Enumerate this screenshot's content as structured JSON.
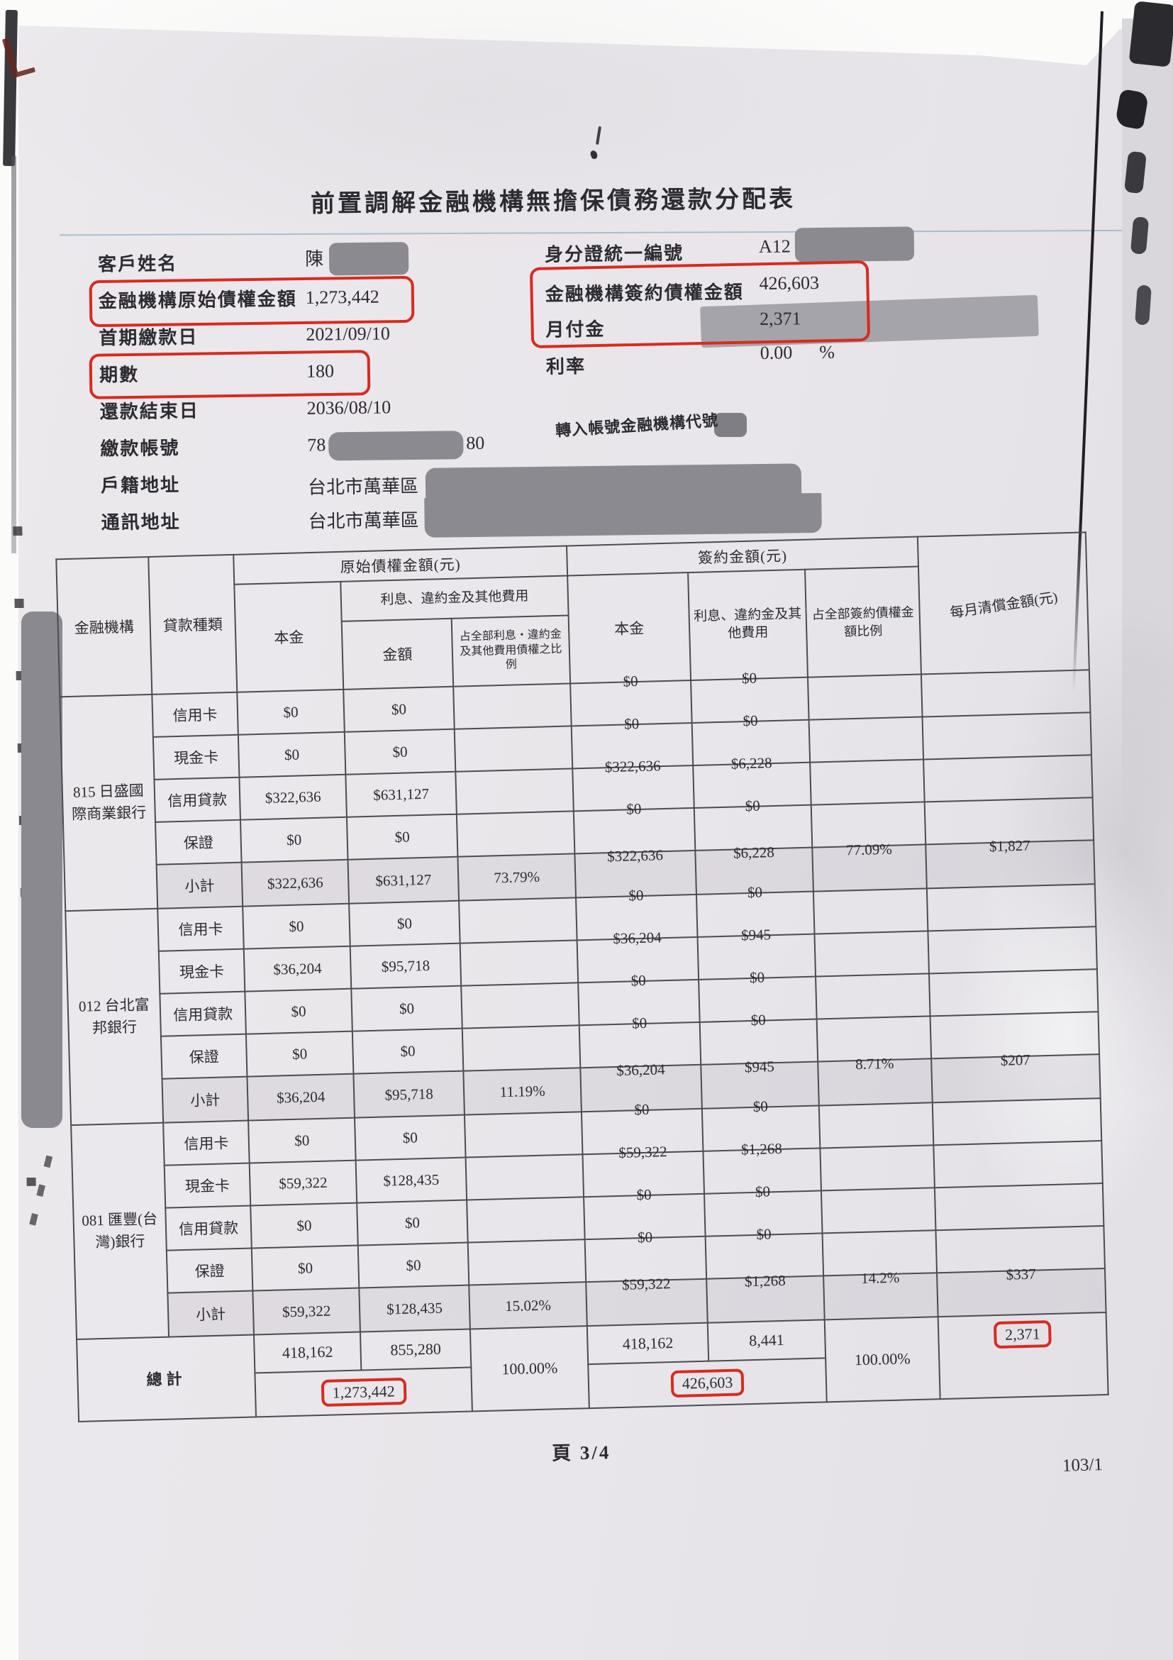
{
  "document": {
    "title": "前置調解金融機構無擔保債務還款分配表",
    "page_label": "頁 3/4",
    "form_number": "103/1"
  },
  "fields": {
    "left": [
      {
        "label": "客戶姓名",
        "value": "陳"
      },
      {
        "label": "金融機構原始債權金額",
        "value": "1,273,442"
      },
      {
        "label": "首期繳款日",
        "value": "2021/09/10"
      },
      {
        "label": "期數",
        "value": "180"
      },
      {
        "label": "還款結束日",
        "value": "2036/08/10"
      },
      {
        "label": "繳款帳號",
        "value_prefix": "78",
        "value_suffix": "80"
      },
      {
        "label": "戶籍地址",
        "value": "台北市萬華區"
      },
      {
        "label": "通訊地址",
        "value": "台北市萬華區"
      }
    ],
    "right": [
      {
        "label": "身分證統一編號",
        "value": "A12"
      },
      {
        "label": "金融機構簽約債權金額",
        "value": "426,603"
      },
      {
        "label": "月付金",
        "value": "2,371"
      },
      {
        "label": "利率",
        "value": "0.00",
        "unit": "%"
      }
    ],
    "transfer_label": "轉入帳號金融機構代號"
  },
  "colors": {
    "annotation_red": "#d92a1e",
    "redaction_gray": "#8b8a90",
    "paper": "#e9e7ea"
  },
  "table": {
    "header": {
      "col_institution": "金融機構",
      "col_loan_type": "貸款種類",
      "group_original": "原始債權金額(元)",
      "group_contract": "簽約金額(元)",
      "col_principal_original": "本金",
      "col_interest_group_original": "利息、違約金及其他費用",
      "col_amount": "金額",
      "col_original_ratio": "占全部利息‧違約金及其他費用債權之比例",
      "col_principal_contract": "本金",
      "col_interest_contract": "利息、違約金及其他費用",
      "col_contract_ratio": "占全部簽約債權金額比例",
      "col_monthly": "每月清償金額(元)"
    },
    "subtotal_label": "小計",
    "total_label": "總計",
    "groups": [
      {
        "bank": "815 日盛國際商業銀行",
        "rows": [
          {
            "type": "信用卡",
            "o_principal": "$0",
            "o_amount": "$0",
            "c_principal": "$0",
            "c_amount": "$0"
          },
          {
            "type": "現金卡",
            "o_principal": "$0",
            "o_amount": "$0",
            "c_principal": "$0",
            "c_amount": "$0"
          },
          {
            "type": "信用貸款",
            "o_principal": "$322,636",
            "o_amount": "$631,127",
            "c_principal": "$322,636",
            "c_amount": "$6,228"
          },
          {
            "type": "保證",
            "o_principal": "$0",
            "o_amount": "$0",
            "c_principal": "$0",
            "c_amount": "$0"
          }
        ],
        "subtotal": {
          "o_principal": "$322,636",
          "o_amount": "$631,127",
          "o_ratio": "73.79%",
          "c_principal": "$322,636",
          "c_amount": "$6,228",
          "c_ratio": "77.09%",
          "monthly": "$1,827"
        }
      },
      {
        "bank": "012 台北富邦銀行",
        "rows": [
          {
            "type": "信用卡",
            "o_principal": "$0",
            "o_amount": "$0",
            "c_principal": "$0",
            "c_amount": "$0"
          },
          {
            "type": "現金卡",
            "o_principal": "$36,204",
            "o_amount": "$95,718",
            "c_principal": "$36,204",
            "c_amount": "$945"
          },
          {
            "type": "信用貸款",
            "o_principal": "$0",
            "o_amount": "$0",
            "c_principal": "$0",
            "c_amount": "$0"
          },
          {
            "type": "保證",
            "o_principal": "$0",
            "o_amount": "$0",
            "c_principal": "$0",
            "c_amount": "$0"
          }
        ],
        "subtotal": {
          "o_principal": "$36,204",
          "o_amount": "$95,718",
          "o_ratio": "11.19%",
          "c_principal": "$36,204",
          "c_amount": "$945",
          "c_ratio": "8.71%",
          "monthly": "$207"
        }
      },
      {
        "bank": "081 匯豐(台灣)銀行",
        "rows": [
          {
            "type": "信用卡",
            "o_principal": "$0",
            "o_amount": "$0",
            "c_principal": "$0",
            "c_amount": "$0"
          },
          {
            "type": "現金卡",
            "o_principal": "$59,322",
            "o_amount": "$128,435",
            "c_principal": "$59,322",
            "c_amount": "$1,268"
          },
          {
            "type": "信用貸款",
            "o_principal": "$0",
            "o_amount": "$0",
            "c_principal": "$0",
            "c_amount": "$0"
          },
          {
            "type": "保證",
            "o_principal": "$0",
            "o_amount": "$0",
            "c_principal": "$0",
            "c_amount": "$0"
          }
        ],
        "subtotal": {
          "o_principal": "$59,322",
          "o_amount": "$128,435",
          "o_ratio": "15.02%",
          "c_principal": "$59,322",
          "c_amount": "$1,268",
          "c_ratio": "14.2%",
          "monthly": "$337"
        }
      }
    ],
    "total": {
      "o_principal": "418,162",
      "o_amount": "855,280",
      "o_combined": "1,273,442",
      "o_ratio": "100.00%",
      "c_principal": "418,162",
      "c_amount": "8,441",
      "c_combined": "426,603",
      "c_ratio": "100.00%",
      "monthly": "2,371"
    }
  }
}
